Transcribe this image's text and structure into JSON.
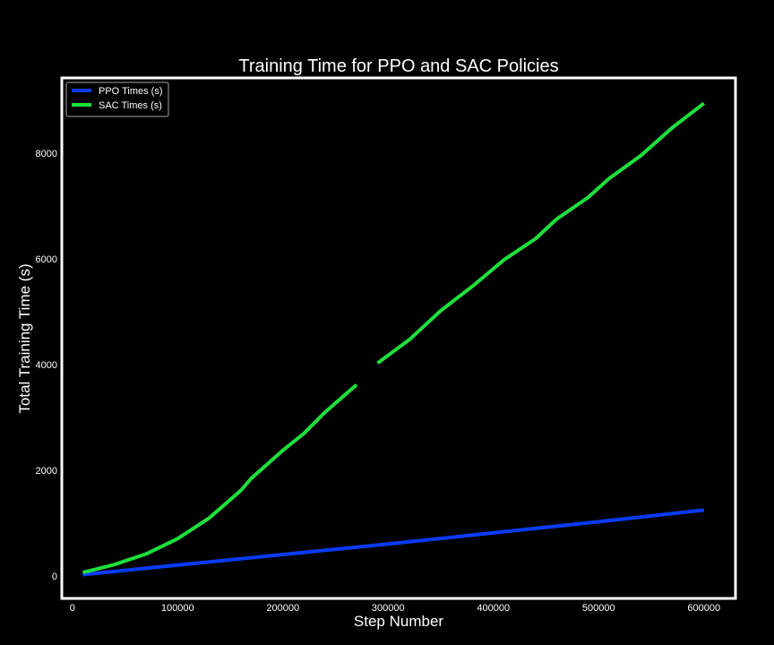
{
  "chart_data": {
    "type": "line",
    "title": "Training Time for PPO and SAC Policies",
    "xlabel": "Step Number",
    "ylabel": "Total Training Time (s)",
    "xlim": [
      -10000,
      630000
    ],
    "ylim": [
      -420,
      9420
    ],
    "x_ticks": [
      0,
      100000,
      200000,
      300000,
      400000,
      500000,
      600000
    ],
    "y_ticks": [
      0,
      2000,
      4000,
      6000,
      8000
    ],
    "grid": false,
    "legend_position": "top-left",
    "background": "#000000",
    "frame_color": "#ffffff",
    "series": [
      {
        "name": "PPO Times (s)",
        "color": "#0a3cff",
        "points": [
          [
            10000,
            30
          ],
          [
            100000,
            210
          ],
          [
            200000,
            410
          ],
          [
            300000,
            610
          ],
          [
            400000,
            820
          ],
          [
            500000,
            1030
          ],
          [
            600000,
            1250
          ]
        ]
      },
      {
        "name": "SAC Times (s)",
        "color": "#1ee03c",
        "points": [
          [
            10000,
            70
          ],
          [
            40000,
            220
          ],
          [
            70000,
            420
          ],
          [
            100000,
            710
          ],
          [
            130000,
            1100
          ],
          [
            160000,
            1620
          ],
          [
            170000,
            1850
          ],
          [
            200000,
            2380
          ],
          [
            220000,
            2700
          ],
          [
            240000,
            3100
          ],
          [
            270000,
            3620
          ],
          null,
          [
            290000,
            4030
          ],
          [
            320000,
            4470
          ],
          [
            350000,
            5020
          ],
          [
            380000,
            5480
          ],
          [
            410000,
            5980
          ],
          [
            440000,
            6380
          ],
          [
            460000,
            6750
          ],
          [
            490000,
            7160
          ],
          [
            510000,
            7520
          ],
          [
            540000,
            7950
          ],
          [
            570000,
            8480
          ],
          [
            600000,
            8940
          ]
        ]
      }
    ]
  }
}
